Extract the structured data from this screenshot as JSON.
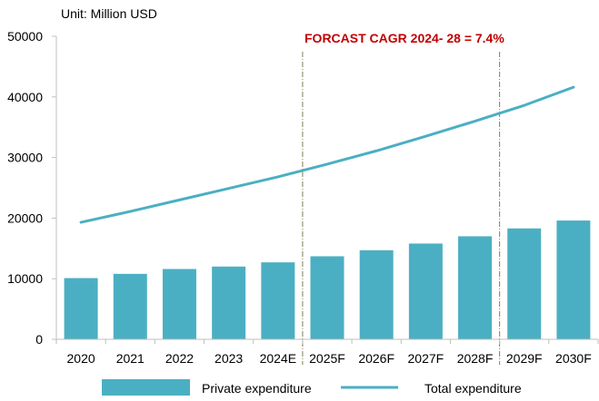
{
  "chart_data": {
    "type": "bar+line",
    "unit_label": "Unit: Million USD",
    "annotation": "FORCAST CAGR 2024- 28 = 7.4%",
    "categories": [
      "2020",
      "2021",
      "2022",
      "2023",
      "2024E",
      "2025F",
      "2026F",
      "2027F",
      "2028F",
      "2029F",
      "2030F"
    ],
    "series": [
      {
        "name": "Private expenditure",
        "type": "bar",
        "values": [
          10100,
          10800,
          11600,
          12000,
          12700,
          13700,
          14700,
          15800,
          17000,
          18300,
          19600
        ]
      },
      {
        "name": "Total expenditure",
        "type": "line",
        "values": [
          19300,
          21100,
          23000,
          24900,
          26800,
          28900,
          31100,
          33500,
          36000,
          38600,
          41600
        ]
      }
    ],
    "yticks": [
      "0",
      "10000",
      "20000",
      "30000",
      "40000",
      "50000"
    ],
    "ylim": [
      0,
      50000
    ],
    "grid": false,
    "dashed_markers_between": [
      [
        "2024E",
        "2025F"
      ],
      [
        "2028F",
        "2029F"
      ]
    ],
    "legend_position": "bottom",
    "colors": {
      "bar": "#4BAFC3",
      "line": "#4BAFC3",
      "annotation": "#C00000",
      "marker": "#7F7F56",
      "axis": "#BFBFBF"
    }
  }
}
